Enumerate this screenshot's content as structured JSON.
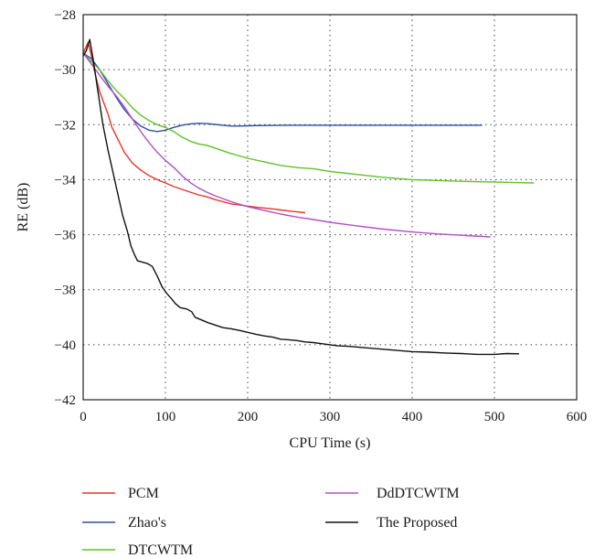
{
  "chart_data": {
    "type": "line",
    "xlabel": "CPU Time (s)",
    "ylabel": "RE (dB)",
    "xlim": [
      0,
      600
    ],
    "ylim": [
      -42,
      -28
    ],
    "xticks": [
      0,
      100,
      200,
      300,
      400,
      500,
      600
    ],
    "yticks": [
      -42,
      -40,
      -38,
      -36,
      -34,
      -32,
      -30,
      -28
    ],
    "xtick_labels": [
      "0",
      "100",
      "200",
      "300",
      "400",
      "500",
      "600"
    ],
    "ytick_labels": [
      "−42",
      "−40",
      "−38",
      "−36",
      "−34",
      "−32",
      "−30",
      "−28"
    ],
    "grid": true,
    "legend_position": "below",
    "series": [
      {
        "name": "PCM",
        "color": "#e8352b",
        "points": [
          [
            0,
            -29.4
          ],
          [
            3,
            -29.2
          ],
          [
            6,
            -29.0
          ],
          [
            10,
            -29.5
          ],
          [
            15,
            -30.2
          ],
          [
            20,
            -30.8
          ],
          [
            25,
            -31.2
          ],
          [
            30,
            -31.6
          ],
          [
            35,
            -32.1
          ],
          [
            40,
            -32.4
          ],
          [
            45,
            -32.7
          ],
          [
            50,
            -33.0
          ],
          [
            55,
            -33.2
          ],
          [
            60,
            -33.4
          ],
          [
            70,
            -33.65
          ],
          [
            80,
            -33.85
          ],
          [
            90,
            -34.0
          ],
          [
            100,
            -34.12
          ],
          [
            110,
            -34.25
          ],
          [
            120,
            -34.35
          ],
          [
            130,
            -34.45
          ],
          [
            140,
            -34.55
          ],
          [
            150,
            -34.62
          ],
          [
            160,
            -34.72
          ],
          [
            170,
            -34.8
          ],
          [
            180,
            -34.88
          ],
          [
            190,
            -34.92
          ],
          [
            200,
            -34.96
          ],
          [
            210,
            -35.0
          ],
          [
            220,
            -35.03
          ],
          [
            230,
            -35.06
          ],
          [
            240,
            -35.1
          ],
          [
            250,
            -35.14
          ],
          [
            260,
            -35.17
          ],
          [
            270,
            -35.2
          ]
        ]
      },
      {
        "name": "Zhao's",
        "color": "#2c4ea3",
        "points": [
          [
            0,
            -29.4
          ],
          [
            10,
            -29.6
          ],
          [
            20,
            -30.0
          ],
          [
            30,
            -30.5
          ],
          [
            40,
            -31.0
          ],
          [
            50,
            -31.45
          ],
          [
            60,
            -31.8
          ],
          [
            70,
            -32.05
          ],
          [
            80,
            -32.2
          ],
          [
            90,
            -32.25
          ],
          [
            100,
            -32.2
          ],
          [
            110,
            -32.1
          ],
          [
            120,
            -32.02
          ],
          [
            130,
            -31.97
          ],
          [
            140,
            -31.95
          ],
          [
            150,
            -31.96
          ],
          [
            160,
            -31.99
          ],
          [
            170,
            -32.02
          ],
          [
            180,
            -32.05
          ],
          [
            190,
            -32.05
          ],
          [
            200,
            -32.04
          ],
          [
            220,
            -32.03
          ],
          [
            250,
            -32.02
          ],
          [
            300,
            -32.02
          ],
          [
            350,
            -32.02
          ],
          [
            400,
            -32.02
          ],
          [
            450,
            -32.02
          ],
          [
            485,
            -32.02
          ]
        ]
      },
      {
        "name": "DTCWTM",
        "color": "#5ec225",
        "points": [
          [
            0,
            -29.4
          ],
          [
            10,
            -29.7
          ],
          [
            20,
            -30.0
          ],
          [
            30,
            -30.4
          ],
          [
            40,
            -30.75
          ],
          [
            50,
            -31.05
          ],
          [
            60,
            -31.4
          ],
          [
            70,
            -31.65
          ],
          [
            80,
            -31.85
          ],
          [
            90,
            -32.0
          ],
          [
            100,
            -32.1
          ],
          [
            110,
            -32.25
          ],
          [
            120,
            -32.45
          ],
          [
            130,
            -32.6
          ],
          [
            140,
            -32.7
          ],
          [
            150,
            -32.75
          ],
          [
            160,
            -32.85
          ],
          [
            180,
            -33.05
          ],
          [
            200,
            -33.22
          ],
          [
            220,
            -33.35
          ],
          [
            240,
            -33.48
          ],
          [
            260,
            -33.56
          ],
          [
            280,
            -33.6
          ],
          [
            300,
            -33.7
          ],
          [
            330,
            -33.8
          ],
          [
            360,
            -33.9
          ],
          [
            400,
            -34.0
          ],
          [
            430,
            -34.03
          ],
          [
            460,
            -34.06
          ],
          [
            490,
            -34.08
          ],
          [
            520,
            -34.1
          ],
          [
            548,
            -34.12
          ]
        ]
      },
      {
        "name": "DdDTCWTM",
        "color": "#b24fc9",
        "points": [
          [
            0,
            -29.4
          ],
          [
            10,
            -29.8
          ],
          [
            20,
            -30.2
          ],
          [
            30,
            -30.6
          ],
          [
            40,
            -30.95
          ],
          [
            50,
            -31.35
          ],
          [
            60,
            -31.8
          ],
          [
            70,
            -32.25
          ],
          [
            80,
            -32.65
          ],
          [
            90,
            -33.0
          ],
          [
            100,
            -33.3
          ],
          [
            110,
            -33.55
          ],
          [
            120,
            -33.85
          ],
          [
            130,
            -34.1
          ],
          [
            140,
            -34.3
          ],
          [
            150,
            -34.45
          ],
          [
            160,
            -34.58
          ],
          [
            180,
            -34.8
          ],
          [
            200,
            -34.98
          ],
          [
            220,
            -35.12
          ],
          [
            240,
            -35.25
          ],
          [
            260,
            -35.36
          ],
          [
            280,
            -35.45
          ],
          [
            300,
            -35.55
          ],
          [
            330,
            -35.67
          ],
          [
            360,
            -35.78
          ],
          [
            400,
            -35.9
          ],
          [
            430,
            -35.97
          ],
          [
            460,
            -36.02
          ],
          [
            495,
            -36.08
          ]
        ]
      },
      {
        "name": "The Proposed",
        "color": "#111111",
        "points": [
          [
            0,
            -29.5
          ],
          [
            4,
            -29.3
          ],
          [
            8,
            -28.9
          ],
          [
            12,
            -29.6
          ],
          [
            18,
            -30.8
          ],
          [
            24,
            -32.0
          ],
          [
            30,
            -32.9
          ],
          [
            36,
            -33.7
          ],
          [
            42,
            -34.5
          ],
          [
            48,
            -35.3
          ],
          [
            54,
            -35.9
          ],
          [
            58,
            -36.4
          ],
          [
            62,
            -36.7
          ],
          [
            66,
            -36.95
          ],
          [
            72,
            -37.0
          ],
          [
            78,
            -37.05
          ],
          [
            84,
            -37.15
          ],
          [
            90,
            -37.5
          ],
          [
            96,
            -37.9
          ],
          [
            102,
            -38.15
          ],
          [
            108,
            -38.35
          ],
          [
            112,
            -38.5
          ],
          [
            118,
            -38.65
          ],
          [
            126,
            -38.7
          ],
          [
            132,
            -38.8
          ],
          [
            136,
            -39.0
          ],
          [
            144,
            -39.1
          ],
          [
            152,
            -39.2
          ],
          [
            160,
            -39.28
          ],
          [
            170,
            -39.38
          ],
          [
            180,
            -39.42
          ],
          [
            190,
            -39.48
          ],
          [
            200,
            -39.55
          ],
          [
            210,
            -39.62
          ],
          [
            220,
            -39.68
          ],
          [
            230,
            -39.72
          ],
          [
            240,
            -39.8
          ],
          [
            250,
            -39.82
          ],
          [
            260,
            -39.85
          ],
          [
            270,
            -39.9
          ],
          [
            280,
            -39.92
          ],
          [
            290,
            -39.96
          ],
          [
            300,
            -40.0
          ],
          [
            310,
            -40.04
          ],
          [
            320,
            -40.05
          ],
          [
            340,
            -40.1
          ],
          [
            360,
            -40.15
          ],
          [
            380,
            -40.2
          ],
          [
            400,
            -40.25
          ],
          [
            420,
            -40.27
          ],
          [
            440,
            -40.3
          ],
          [
            460,
            -40.32
          ],
          [
            480,
            -40.35
          ],
          [
            500,
            -40.35
          ],
          [
            515,
            -40.32
          ],
          [
            530,
            -40.33
          ]
        ]
      }
    ]
  }
}
